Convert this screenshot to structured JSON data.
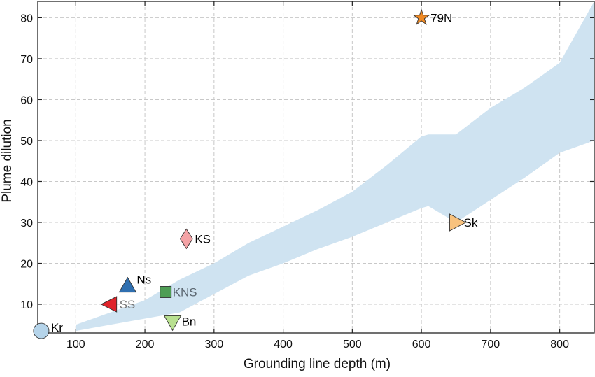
{
  "chart_data": {
    "type": "scatter",
    "xlabel": "Grounding line depth (m)",
    "ylabel": "Plume dilution",
    "xlim": [
      45,
      850
    ],
    "ylim": [
      3,
      84
    ],
    "xticks": [
      "100",
      "200",
      "300",
      "400",
      "500",
      "600",
      "700",
      "800"
    ],
    "yticks": [
      "10",
      "20",
      "30",
      "40",
      "50",
      "60",
      "70",
      "80"
    ],
    "grid": true,
    "band": {
      "color": "#cfe3f1",
      "x": [
        100,
        150,
        200,
        250,
        300,
        350,
        400,
        450,
        500,
        550,
        600,
        610,
        650,
        700,
        750,
        800,
        850
      ],
      "lower": [
        3.5,
        5,
        6.5,
        8,
        12.5,
        17,
        20,
        23.5,
        26.5,
        30,
        33.5,
        34,
        30,
        35.5,
        41,
        47,
        50
      ],
      "upper": [
        5,
        8,
        11,
        16,
        20,
        25,
        29,
        33,
        37.5,
        44,
        51,
        51.5,
        51.5,
        58,
        63,
        69,
        84
      ]
    },
    "points": [
      {
        "label": "Kr",
        "x": 50,
        "y": 3.5,
        "marker": "circle",
        "color": "#b5d4ea",
        "label_color": "#000000"
      },
      {
        "label": "Ns",
        "x": 175,
        "y": 14.5,
        "marker": "triangle-up",
        "color": "#2f6fb0",
        "label_color": "#000000"
      },
      {
        "label": "SS",
        "x": 150,
        "y": 10,
        "marker": "triangle-left",
        "color": "#e0242a",
        "label_color": "#777777"
      },
      {
        "label": "KNS",
        "x": 230,
        "y": 13,
        "marker": "square",
        "color": "#4e9e55",
        "label_color": "#5b6670"
      },
      {
        "label": "Bn",
        "x": 240,
        "y": 5.5,
        "marker": "triangle-down",
        "color": "#b8e090",
        "label_color": "#000000"
      },
      {
        "label": "KS",
        "x": 260,
        "y": 26,
        "marker": "diamond",
        "color": "#f4a3a6",
        "label_color": "#000000"
      },
      {
        "label": "Sk",
        "x": 650,
        "y": 30,
        "marker": "triangle-right",
        "color": "#f8c27e",
        "label_color": "#000000"
      },
      {
        "label": "79N",
        "x": 600,
        "y": 80,
        "marker": "star",
        "color": "#f08a24",
        "label_color": "#000000"
      }
    ]
  }
}
